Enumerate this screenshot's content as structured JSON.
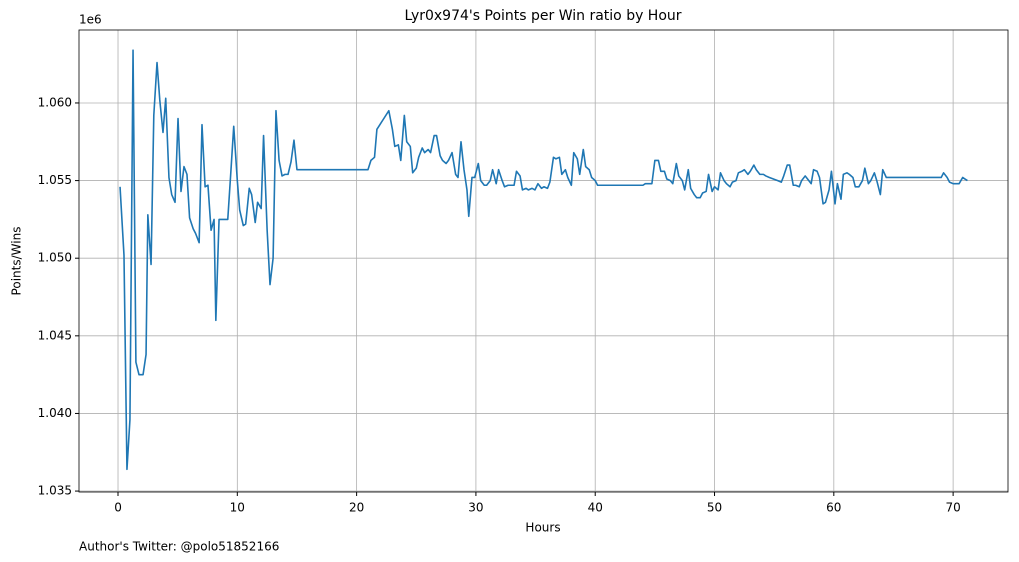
{
  "chart_data": {
    "type": "line",
    "title": "Lyr0x974's Points per Win ratio by Hour",
    "xlabel": "Hours",
    "ylabel": "Points/Wins",
    "offset_label": "1e6",
    "footer": "Author's Twitter: @polo51852166",
    "color": "#1f77b4",
    "grid": true,
    "xlim": [
      -3.27,
      74.6
    ],
    "ylim": [
      1.03494,
      1.0647
    ],
    "xticks": [
      0,
      10,
      20,
      30,
      40,
      50,
      60,
      70
    ],
    "yticks": [
      1.035,
      {
        "value": 1.04,
        "label": "1.040"
      },
      1.045,
      {
        "value": 1.05,
        "label": "1.050"
      },
      1.055,
      {
        "value": 1.06,
        "label": "1.060"
      }
    ],
    "x": [
      0.17,
      0.5,
      0.75,
      1.0,
      1.26,
      1.5,
      1.76,
      2.1,
      2.35,
      2.5,
      2.77,
      3.0,
      3.27,
      3.5,
      3.77,
      4.0,
      4.27,
      4.5,
      4.78,
      5.03,
      5.28,
      5.53,
      5.78,
      6.0,
      6.3,
      6.5,
      6.8,
      7.04,
      7.3,
      7.54,
      7.8,
      8.05,
      8.2,
      8.47,
      8.7,
      9.2,
      9.47,
      9.7,
      10.0,
      10.2,
      10.5,
      10.7,
      11.0,
      11.2,
      11.5,
      11.7,
      12.0,
      12.2,
      12.5,
      12.74,
      13.0,
      13.24,
      13.5,
      13.75,
      14.0,
      14.25,
      14.5,
      14.75,
      15.0,
      20.95,
      21.2,
      21.5,
      21.7,
      22.7,
      23.0,
      23.2,
      23.5,
      23.7,
      24.0,
      24.2,
      24.5,
      24.7,
      25.0,
      25.2,
      25.5,
      25.7,
      26.0,
      26.2,
      26.5,
      26.7,
      27.0,
      27.2,
      27.5,
      27.7,
      28.0,
      28.3,
      28.5,
      28.75,
      29.0,
      29.25,
      29.4,
      29.67,
      29.9,
      30.2,
      30.4,
      30.7,
      30.9,
      31.2,
      31.4,
      31.7,
      31.9,
      32.2,
      32.4,
      32.7,
      33.2,
      33.4,
      33.7,
      33.9,
      34.2,
      34.4,
      34.7,
      34.95,
      35.2,
      35.5,
      35.7,
      36.0,
      36.2,
      36.5,
      36.7,
      37.0,
      37.2,
      37.5,
      37.7,
      38.0,
      38.2,
      38.5,
      38.7,
      39.0,
      39.2,
      39.5,
      39.7,
      40.0,
      40.2,
      44.0,
      44.2,
      44.75,
      45.0,
      45.3,
      45.5,
      45.8,
      46.0,
      46.3,
      46.5,
      46.8,
      47.0,
      47.3,
      47.5,
      47.8,
      48.0,
      48.3,
      48.5,
      48.8,
      49.0,
      49.3,
      49.5,
      49.8,
      50.0,
      50.3,
      50.5,
      50.8,
      51.0,
      51.3,
      51.5,
      51.8,
      52.0,
      52.3,
      52.5,
      52.8,
      53.0,
      53.3,
      53.5,
      53.8,
      54.1,
      54.3,
      54.6,
      55.3,
      55.6,
      55.8,
      56.1,
      56.3,
      56.6,
      56.8,
      57.1,
      57.3,
      57.6,
      57.8,
      58.1,
      58.3,
      58.6,
      58.8,
      59.1,
      59.3,
      59.6,
      59.8,
      60.1,
      60.3,
      60.6,
      60.8,
      61.1,
      61.3,
      61.6,
      61.8,
      62.1,
      62.4,
      62.6,
      62.9,
      63.1,
      63.4,
      63.6,
      63.9,
      64.1,
      64.4,
      69.0,
      69.2,
      69.5,
      69.7,
      70.0,
      70.2,
      70.5,
      70.8,
      71.0,
      71.2
    ],
    "values": [
      1.0546,
      1.0502,
      1.0364,
      1.0396,
      1.0634,
      1.0433,
      1.0425,
      1.0425,
      1.0438,
      1.0528,
      1.0496,
      1.0592,
      1.0626,
      1.0602,
      1.0581,
      1.0603,
      1.0552,
      1.0541,
      1.0536,
      1.059,
      1.0543,
      1.0559,
      1.0554,
      1.0526,
      1.0519,
      1.0516,
      1.051,
      1.0586,
      1.0546,
      1.0547,
      1.0518,
      1.0525,
      1.046,
      1.0525,
      1.0525,
      1.0525,
      1.0557,
      1.0585,
      1.055,
      1.0531,
      1.0521,
      1.0522,
      1.0545,
      1.0541,
      1.0523,
      1.0536,
      1.0532,
      1.0579,
      1.0518,
      1.0483,
      1.05,
      1.0595,
      1.0563,
      1.0553,
      1.0554,
      1.0554,
      1.0562,
      1.0576,
      1.0557,
      1.0557,
      1.0563,
      1.0565,
      1.0583,
      1.0595,
      1.0583,
      1.0572,
      1.0573,
      1.0563,
      1.0592,
      1.0575,
      1.0572,
      1.0555,
      1.0558,
      1.0565,
      1.0571,
      1.0568,
      1.057,
      1.0568,
      1.0579,
      1.0579,
      1.0566,
      1.0563,
      1.0561,
      1.0563,
      1.0568,
      1.0554,
      1.0552,
      1.0575,
      1.0557,
      1.0544,
      1.0527,
      1.0552,
      1.0552,
      1.0561,
      1.055,
      1.0547,
      1.0547,
      1.055,
      1.0557,
      1.0548,
      1.0557,
      1.055,
      1.0546,
      1.0547,
      1.0547,
      1.0556,
      1.0553,
      1.0544,
      1.0545,
      1.0544,
      1.0545,
      1.0544,
      1.0548,
      1.0545,
      1.0546,
      1.0545,
      1.0549,
      1.0565,
      1.0564,
      1.0565,
      1.0554,
      1.0557,
      1.0552,
      1.0547,
      1.0568,
      1.0564,
      1.0554,
      1.057,
      1.0559,
      1.0557,
      1.0552,
      1.055,
      1.0547,
      1.0547,
      1.0548,
      1.0548,
      1.0563,
      1.0563,
      1.0556,
      1.0556,
      1.0551,
      1.055,
      1.0548,
      1.0561,
      1.0553,
      1.055,
      1.0544,
      1.0557,
      1.0545,
      1.0541,
      1.0539,
      1.0539,
      1.0542,
      1.0543,
      1.0554,
      1.0543,
      1.0546,
      1.0544,
      1.0555,
      1.055,
      1.0548,
      1.0546,
      1.0549,
      1.055,
      1.0555,
      1.0556,
      1.0557,
      1.0554,
      1.0556,
      1.056,
      1.0557,
      1.0554,
      1.0554,
      1.0553,
      1.0552,
      1.055,
      1.0549,
      1.0553,
      1.056,
      1.056,
      1.0547,
      1.0547,
      1.0546,
      1.055,
      1.0553,
      1.0551,
      1.0548,
      1.0557,
      1.0556,
      1.0552,
      1.0535,
      1.0536,
      1.0544,
      1.0556,
      1.0535,
      1.0548,
      1.0538,
      1.0554,
      1.0555,
      1.0554,
      1.0552,
      1.0546,
      1.0546,
      1.055,
      1.0558,
      1.0548,
      1.055,
      1.0555,
      1.055,
      1.0541,
      1.0557,
      1.0552,
      1.0552,
      1.0555,
      1.0552,
      1.0549,
      1.0548,
      1.0548,
      1.0548,
      1.0552,
      1.0551,
      1.055
    ]
  }
}
